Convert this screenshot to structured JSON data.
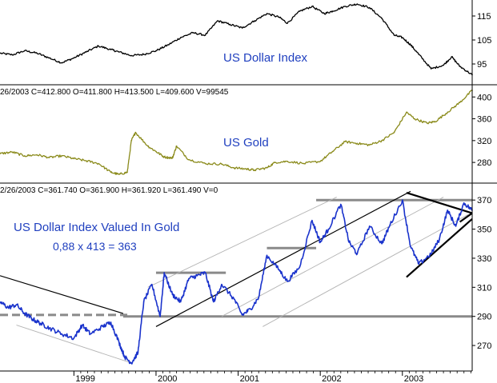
{
  "colors": {
    "background": "#ffffff",
    "divider": "#000000",
    "title": "#1f3fbf",
    "usd_series": "#000000",
    "gold_series": "#8a8a1a",
    "ratio_series": "#1a33cc",
    "trendline": "#000000",
    "support_line": "#8a8a8a",
    "channel_line": "#b4b4b4"
  },
  "chart_data": [
    {
      "type": "line",
      "title": "US Dollar Index",
      "info": "",
      "x_start": 1998.1,
      "x_end": 2003.85,
      "ylim": [
        87,
        121
      ],
      "yticks": [
        95,
        105,
        115
      ],
      "ytick_labels": [
        "95",
        "105",
        "115"
      ],
      "series": [
        {
          "x": [
            1998.1,
            1998.25,
            1998.4,
            1998.55,
            1998.7,
            1998.85,
            1999.0,
            1999.15,
            1999.3,
            1999.45,
            1999.55,
            1999.7,
            1999.85,
            2000.0,
            2000.15,
            2000.3,
            2000.45,
            2000.6,
            2000.75,
            2000.9,
            2001.05,
            2001.2,
            2001.35,
            2001.5,
            2001.6,
            2001.75,
            2001.9,
            2002.05,
            2002.15,
            2002.3,
            2002.45,
            2002.6,
            2002.75,
            2002.9,
            2003.0,
            2003.1,
            2003.2,
            2003.35,
            2003.5,
            2003.6,
            2003.7,
            2003.85
          ],
          "values": [
            99.5,
            98.8,
            100.5,
            99.5,
            97.5,
            95.5,
            97.5,
            100.0,
            102.5,
            101.0,
            100.0,
            98.5,
            99.0,
            100.5,
            103.0,
            106.0,
            108.0,
            107.0,
            113.0,
            111.5,
            110.0,
            113.0,
            116.0,
            114.5,
            112.0,
            117.0,
            119.0,
            116.0,
            117.0,
            119.0,
            120.0,
            118.5,
            114.0,
            107.0,
            106.0,
            103.0,
            99.0,
            93.0,
            94.5,
            98.0,
            94.0,
            90.5
          ]
        }
      ]
    },
    {
      "type": "line",
      "title": "US Gold",
      "info": "26/2003  C=412.800  O=411.800  H=413.500  L=409.600  V=99545",
      "x_start": 1998.1,
      "x_end": 2003.85,
      "ylim": [
        245,
        418
      ],
      "yticks": [
        280,
        320,
        360,
        400
      ],
      "ytick_labels": [
        "280",
        "320",
        "360",
        "400"
      ],
      "series": [
        {
          "x": [
            1998.1,
            1998.25,
            1998.4,
            1998.55,
            1998.7,
            1998.85,
            1999.0,
            1999.15,
            1999.3,
            1999.45,
            1999.55,
            1999.65,
            1999.7,
            1999.75,
            1999.9,
            2000.0,
            2000.1,
            2000.2,
            2000.25,
            2000.4,
            2000.6,
            2000.8,
            2000.95,
            2001.1,
            2001.2,
            2001.35,
            2001.45,
            2001.6,
            2001.8,
            2002.0,
            2002.15,
            2002.3,
            2002.45,
            2002.6,
            2002.75,
            2002.9,
            2003.05,
            2003.15,
            2003.3,
            2003.4,
            2003.55,
            2003.7,
            2003.85
          ],
          "values": [
            296,
            299,
            292,
            294,
            289,
            292,
            287,
            283,
            278,
            262,
            258,
            262,
            320,
            335,
            310,
            300,
            290,
            288,
            310,
            285,
            278,
            277,
            270,
            268,
            266,
            270,
            280,
            282,
            278,
            282,
            300,
            318,
            315,
            312,
            320,
            335,
            372,
            360,
            352,
            355,
            372,
            390,
            412
          ]
        }
      ]
    },
    {
      "type": "line",
      "title": "US Dollar Index Valued In Gold",
      "subtitle": "0,88 x 413 = 363",
      "info": "2/26/2003  C=361.740  O=361.900  H=361.920  L=361.490  V=0",
      "x_start": 1998.1,
      "x_end": 2003.85,
      "ylim": [
        253,
        380
      ],
      "yticks": [
        270,
        290,
        310,
        330,
        350,
        370
      ],
      "ytick_labels": [
        "270",
        "290",
        "310",
        "330",
        "350",
        "370"
      ],
      "xticks": [
        1999,
        2000,
        2001,
        2002,
        2003
      ],
      "xtick_labels": [
        "1999",
        "2000",
        "2001",
        "2002",
        "2003"
      ],
      "series": [
        {
          "x": [
            1998.1,
            1998.2,
            1998.3,
            1998.4,
            1998.5,
            1998.6,
            1998.7,
            1998.85,
            1999.0,
            1999.1,
            1999.2,
            1999.35,
            1999.45,
            1999.55,
            1999.62,
            1999.7,
            1999.78,
            1999.85,
            1999.95,
            2000.05,
            2000.1,
            2000.2,
            2000.3,
            2000.4,
            2000.5,
            2000.6,
            2000.7,
            2000.8,
            2000.95,
            2001.05,
            2001.15,
            2001.25,
            2001.35,
            2001.5,
            2001.6,
            2001.75,
            2001.9,
            2002.0,
            2002.1,
            2002.25,
            2002.35,
            2002.45,
            2002.6,
            2002.75,
            2002.85,
            2003.0,
            2003.1,
            2003.2,
            2003.35,
            2003.45,
            2003.55,
            2003.65,
            2003.75,
            2003.85
          ],
          "values": [
            300,
            296,
            298,
            292,
            288,
            285,
            282,
            278,
            275,
            284,
            278,
            283,
            286,
            272,
            262,
            258,
            265,
            300,
            312,
            290,
            320,
            305,
            300,
            316,
            318,
            320,
            300,
            312,
            302,
            291,
            295,
            303,
            332,
            322,
            314,
            324,
            356,
            341,
            350,
            367,
            341,
            333,
            352,
            340,
            353,
            370,
            338,
            326,
            333,
            343,
            363,
            352,
            368,
            363
          ]
        }
      ]
    }
  ],
  "x_axis": {
    "labels": [
      "1999",
      "2000",
      "2001",
      "2002",
      "2003"
    ]
  }
}
